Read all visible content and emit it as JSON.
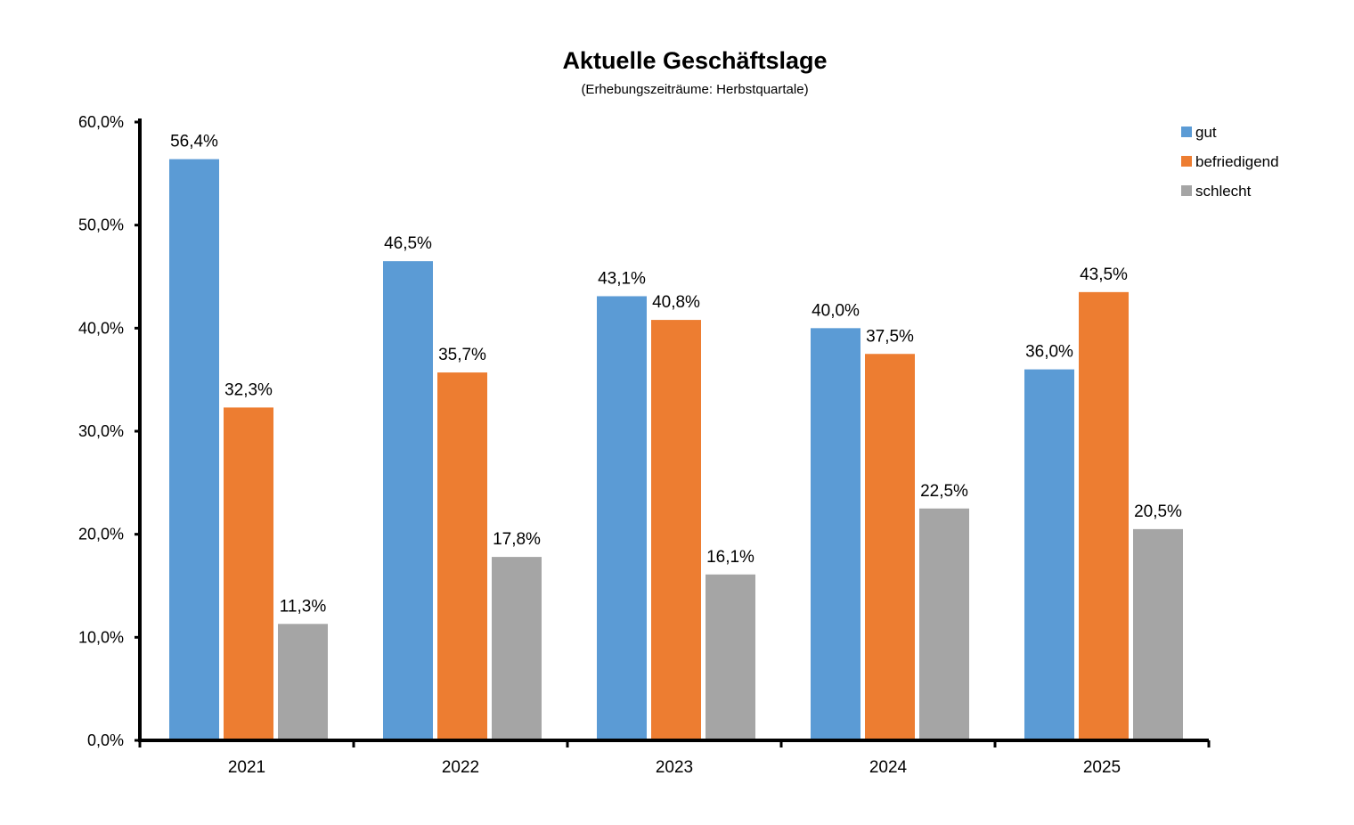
{
  "chart_data": {
    "type": "bar",
    "title": "Aktuelle Geschäftslage",
    "subtitle": "(Erhebungszeiträume: Herbstquartale)",
    "categories": [
      "2021",
      "2022",
      "2023",
      "2024",
      "2025"
    ],
    "series": [
      {
        "name": "gut",
        "color": "#5B9BD5",
        "values": [
          56.4,
          46.5,
          43.1,
          40.0,
          36.0
        ],
        "labels": [
          "56,4%",
          "46,5%",
          "43,1%",
          "40,0%",
          "36,0%"
        ]
      },
      {
        "name": "befriedigend",
        "color": "#ED7D31",
        "values": [
          32.3,
          35.7,
          40.8,
          37.5,
          43.5
        ],
        "labels": [
          "32,3%",
          "35,7%",
          "40,8%",
          "37,5%",
          "43,5%"
        ]
      },
      {
        "name": "schlecht",
        "color": "#A5A5A5",
        "values": [
          11.3,
          17.8,
          16.1,
          22.5,
          20.5
        ],
        "labels": [
          "11,3%",
          "17,8%",
          "16,1%",
          "22,5%",
          "20,5%"
        ]
      }
    ],
    "ylim": [
      0,
      60
    ],
    "yticks": [
      "0,0%",
      "10,0%",
      "20,0%",
      "30,0%",
      "40,0%",
      "50,0%",
      "60,0%"
    ],
    "xlabel": "",
    "ylabel": "",
    "grid": false,
    "legend": "top-right"
  }
}
